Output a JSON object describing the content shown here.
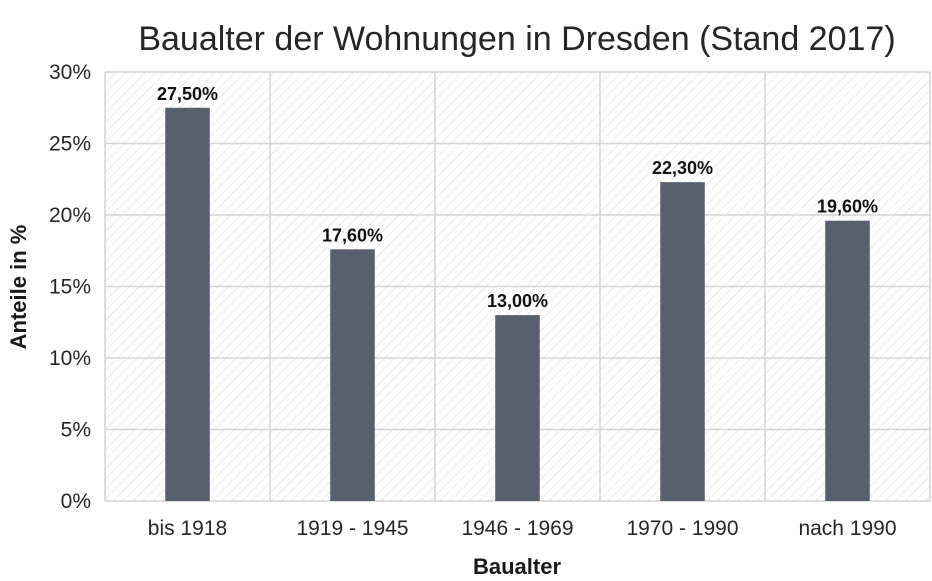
{
  "chart_data": {
    "type": "bar",
    "title": "Baualter der Wohnungen in Dresden (Stand 2017)",
    "xlabel": "Baualter",
    "ylabel": "Anteile in %",
    "categories": [
      "bis 1918",
      "1919 - 1945",
      "1946 - 1969",
      "1970 - 1990",
      "nach 1990"
    ],
    "values": [
      27.5,
      17.6,
      13.0,
      22.3,
      19.6
    ],
    "data_labels": [
      "27,50%",
      "17,60%",
      "13,00%",
      "22,30%",
      "19,60%"
    ],
    "ylim": [
      0,
      30
    ],
    "yticks": [
      0,
      5,
      10,
      15,
      20,
      25,
      30
    ],
    "ytick_labels": [
      "0%",
      "5%",
      "10%",
      "15%",
      "20%",
      "25%",
      "30%"
    ],
    "grid": true,
    "legend": "none",
    "colors": {
      "bar": "#58606e",
      "grid": "#d4d4d4",
      "hatch": "#dadada",
      "text": "#262626"
    }
  }
}
